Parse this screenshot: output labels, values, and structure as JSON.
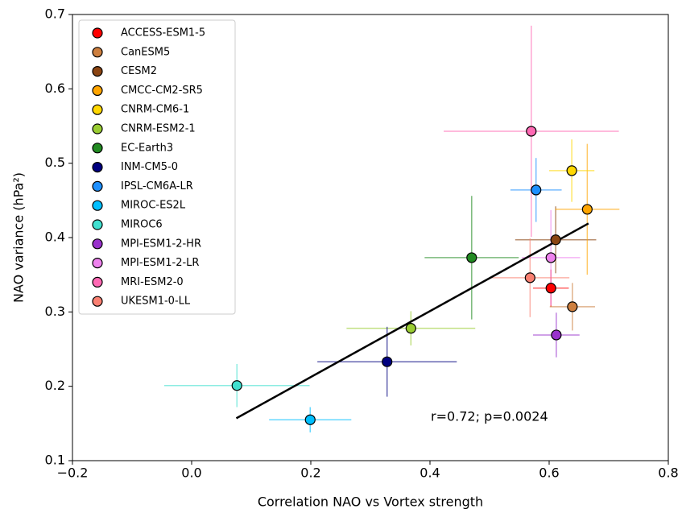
{
  "chart_data": {
    "type": "scatter",
    "xlabel": "Correlation NAO vs Vortex strength",
    "ylabel": "NAO variance (hPa²)",
    "xlim": [
      -0.2,
      0.8
    ],
    "xticks": [
      {
        "value": -0.2,
        "label": "−0.2"
      },
      {
        "value": 0,
        "label": "0.0"
      },
      0.2,
      0.4,
      0.6,
      0.8
    ],
    "ylim": [
      0.1,
      0.7
    ],
    "yticks": [
      0.1,
      0.2,
      0.3,
      0.4,
      0.5,
      0.6,
      0.7
    ],
    "legend": "upper left",
    "annotation": "r=0.72; p=0.0024",
    "fit_line": {
      "color": "#000000",
      "x": [
        0.075,
        0.666
      ],
      "y": [
        0.157,
        0.419
      ]
    },
    "series": [
      {
        "name": "ACCESS-ESM1-5",
        "color": "#ff0000",
        "x": 0.603,
        "y": 0.332,
        "xerr": 0.03,
        "yerr": 0.025
      },
      {
        "name": "CanESM5",
        "color": "#cd7f3f",
        "x": 0.639,
        "y": 0.307,
        "xerr": 0.038,
        "yerr": 0.032
      },
      {
        "name": "CESM2",
        "color": "#8b4513",
        "x": 0.611,
        "y": 0.397,
        "xerr": 0.068,
        "yerr": 0.045
      },
      {
        "name": "CMCC-CM2-SR5",
        "color": "#ffa500",
        "x": 0.664,
        "y": 0.438,
        "xerr": 0.054,
        "yerr": 0.088
      },
      {
        "name": "CNRM-CM6-1",
        "color": "#ffd700",
        "x": 0.638,
        "y": 0.49,
        "xerr": 0.038,
        "yerr": 0.042
      },
      {
        "name": "CNRM-ESM2-1",
        "color": "#9acd32",
        "x": 0.368,
        "y": 0.278,
        "xerr": 0.108,
        "yerr": 0.023
      },
      {
        "name": "EC-Earth3",
        "color": "#228b22",
        "x": 0.47,
        "y": 0.373,
        "xerr": 0.079,
        "yerr": 0.083
      },
      {
        "name": "INM-CM5-0",
        "color": "#000080",
        "x": 0.328,
        "y": 0.233,
        "xerr": 0.117,
        "yerr": 0.047
      },
      {
        "name": "IPSL-CM6A-LR",
        "color": "#1e90ff",
        "x": 0.578,
        "y": 0.464,
        "xerr": 0.043,
        "yerr": 0.043
      },
      {
        "name": "MIROC-ES2L",
        "color": "#00bfff",
        "x": 0.199,
        "y": 0.155,
        "xerr": 0.069,
        "yerr": 0.017
      },
      {
        "name": "MIROC6",
        "color": "#40e0d0",
        "x": 0.076,
        "y": 0.201,
        "xerr": 0.122,
        "yerr": 0.029
      },
      {
        "name": "MPI-ESM1-2-HR",
        "color": "#9932cc",
        "x": 0.612,
        "y": 0.269,
        "xerr": 0.039,
        "yerr": 0.03
      },
      {
        "name": "MPI-ESM1-2-LR",
        "color": "#ee82ee",
        "x": 0.603,
        "y": 0.373,
        "xerr": 0.049,
        "yerr": 0.064
      },
      {
        "name": "MRI-ESM2-0",
        "color": "#ff69b4",
        "x": 0.57,
        "y": 0.543,
        "xerr": 0.147,
        "yerr": 0.142
      },
      {
        "name": "UKESM1-0-LL",
        "color": "#fa8072",
        "x": 0.568,
        "y": 0.346,
        "xerr": 0.066,
        "yerr": 0.053
      }
    ]
  }
}
